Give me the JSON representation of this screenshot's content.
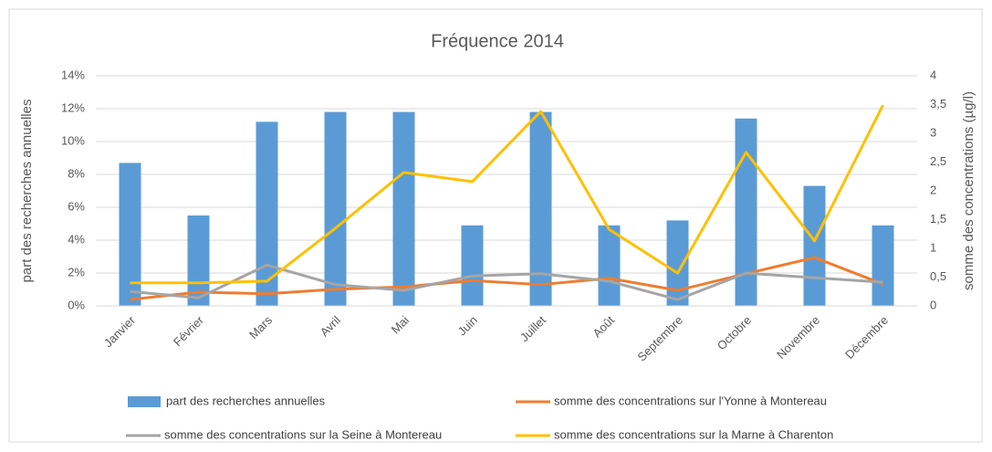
{
  "chart_data": {
    "type": "bar-line",
    "title": "Fréquence 2014",
    "ylabel": "part des recherches annuelles",
    "y2label": "somme des concentrations (µg/l)",
    "categories": [
      "Janvier",
      "Février",
      "Mars",
      "Avril",
      "Mai",
      "Juin",
      "Juillet",
      "Août",
      "Septembre",
      "Octobre",
      "Novembre",
      "Décembre"
    ],
    "ylim": [
      0,
      14
    ],
    "yticks": [
      {
        "value": 0,
        "label": "0%"
      },
      {
        "value": 2,
        "label": "2%"
      },
      {
        "value": 4,
        "label": "4%"
      },
      {
        "value": 6,
        "label": "6%"
      },
      {
        "value": 8,
        "label": "8%"
      },
      {
        "value": 10,
        "label": "10%"
      },
      {
        "value": 12,
        "label": "12%"
      },
      {
        "value": 14,
        "label": "14%"
      }
    ],
    "y2lim": [
      0,
      4
    ],
    "y2ticks": [
      0,
      {
        "value": 0.5,
        "label": "0,5"
      },
      1,
      {
        "value": 1.5,
        "label": "1,5"
      },
      2,
      {
        "value": 2.5,
        "label": "2,5"
      },
      3,
      {
        "value": 3.5,
        "label": "3,5"
      },
      4
    ],
    "grid": true,
    "series": [
      {
        "name": "part des recherches annuelles",
        "type": "bar",
        "color": "#5b9bd5",
        "values": [
          8.7,
          5.5,
          11.2,
          11.8,
          11.8,
          4.9,
          11.8,
          4.9,
          5.2,
          11.4,
          7.3,
          4.9
        ]
      },
      {
        "name": "somme des concentrations sur l'Yonne à Montereau",
        "type": "line",
        "axis": "y2",
        "color": "#ed7d31",
        "values": [
          0.11,
          0.24,
          0.21,
          0.29,
          0.33,
          0.44,
          0.37,
          0.48,
          0.27,
          0.56,
          0.84,
          0.38
        ]
      },
      {
        "name": "somme des concentrations sur la Seine à Montereau",
        "type": "line",
        "axis": "y2",
        "color": "#a5a5a5",
        "values": [
          0.25,
          0.14,
          0.71,
          0.37,
          0.27,
          0.52,
          0.56,
          0.43,
          0.11,
          0.57,
          0.49,
          0.41
        ]
      },
      {
        "name": "somme des concentrations sur la Marne à Charenton",
        "type": "line",
        "axis": "y2",
        "color": "#ffc000",
        "values": [
          0.4,
          0.4,
          0.43,
          1.35,
          2.32,
          2.16,
          3.38,
          1.33,
          0.57,
          2.67,
          1.13,
          3.49
        ]
      }
    ]
  }
}
